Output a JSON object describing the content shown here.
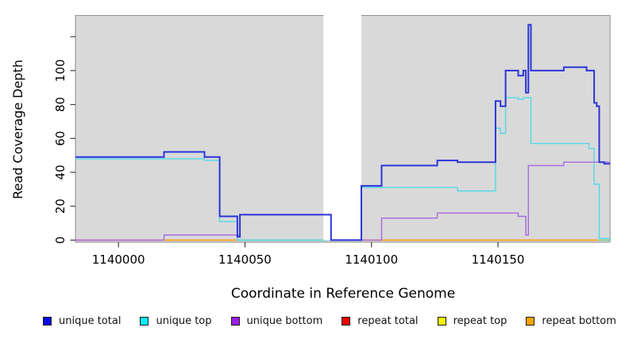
{
  "figure": {
    "x_label": "Coordinate in Reference Genome",
    "y_label": "Read Coverage Depth"
  },
  "legend": {
    "items": [
      {
        "label": "unique total",
        "color": "#0a0ae8"
      },
      {
        "label": "unique top",
        "color": "#00f0ff"
      },
      {
        "label": "unique bottom",
        "color": "#9b1fe8"
      },
      {
        "label": "repeat total",
        "color": "#ee0000"
      },
      {
        "label": "repeat top",
        "color": "#f5f500"
      },
      {
        "label": "repeat bottom",
        "color": "#ffa200"
      }
    ]
  },
  "chart_data": {
    "type": "step-line",
    "title": "",
    "xlabel": "Coordinate in Reference Genome",
    "ylabel": "Read Coverage Depth",
    "plot_background": "#d9d9d9",
    "grid": false,
    "legend_position": "bottom",
    "x_axis": {
      "min": 1139983,
      "max": 1140194.3,
      "ticks": [
        {
          "value": 1140000,
          "label": "1140000"
        },
        {
          "value": 1140050,
          "label": "1140050"
        },
        {
          "value": 1140100,
          "label": "1140100"
        },
        {
          "value": 1140150,
          "label": "1140150"
        }
      ]
    },
    "y_axis": {
      "min": -1.2,
      "max": 132.5,
      "ticks": [
        {
          "value": 0,
          "label": "0"
        },
        {
          "value": 20,
          "label": "20"
        },
        {
          "value": 40,
          "label": "40"
        },
        {
          "value": 60,
          "label": "60"
        },
        {
          "value": 80,
          "label": "80"
        },
        {
          "value": 100,
          "label": "100"
        },
        {
          "value": 120,
          "label": ""
        }
      ]
    },
    "masked_region": {
      "from": 1140081,
      "to": 1140096,
      "color": "#ffffff"
    },
    "series": [
      {
        "name": "unique total",
        "color": "#2b35d8",
        "width": 2,
        "points": [
          [
            1139983,
            49
          ],
          [
            1140018,
            52
          ],
          [
            1140034,
            49
          ],
          [
            1140040,
            14
          ],
          [
            1140047,
            2
          ],
          [
            1140048,
            15
          ],
          [
            1140084,
            0
          ],
          [
            1140096,
            32
          ],
          [
            1140104,
            44
          ],
          [
            1140126,
            47
          ],
          [
            1140134,
            46
          ],
          [
            1140149,
            82
          ],
          [
            1140151,
            79
          ],
          [
            1140153,
            100
          ],
          [
            1140158,
            97
          ],
          [
            1140160,
            100
          ],
          [
            1140161,
            87
          ],
          [
            1140162,
            127
          ],
          [
            1140163,
            100
          ],
          [
            1140176,
            102
          ],
          [
            1140185,
            100
          ],
          [
            1140188,
            81
          ],
          [
            1140189,
            79
          ],
          [
            1140190,
            46
          ],
          [
            1140192,
            45
          ]
        ]
      },
      {
        "name": "unique top",
        "color": "#52d9e8",
        "width": 1.4,
        "points": [
          [
            1139983,
            48
          ],
          [
            1140034,
            47
          ],
          [
            1140040,
            11
          ],
          [
            1140047,
            0
          ],
          [
            1140096,
            31
          ],
          [
            1140134,
            29
          ],
          [
            1140149,
            66
          ],
          [
            1140151,
            63
          ],
          [
            1140153,
            84
          ],
          [
            1140158,
            83
          ],
          [
            1140160,
            84
          ],
          [
            1140163,
            57
          ],
          [
            1140186,
            54
          ],
          [
            1140188,
            33
          ],
          [
            1140190,
            1
          ]
        ]
      },
      {
        "name": "unique bottom",
        "color": "#a76ae0",
        "width": 1.4,
        "points": [
          [
            1139983,
            0
          ],
          [
            1140018,
            3
          ],
          [
            1140048,
            15
          ],
          [
            1140084,
            0
          ],
          [
            1140104,
            13
          ],
          [
            1140126,
            16
          ],
          [
            1140158,
            14
          ],
          [
            1140161,
            3
          ],
          [
            1140162,
            44
          ],
          [
            1140176,
            46
          ]
        ]
      },
      {
        "name": "repeat total",
        "color": "#e0707f",
        "width": 1.5,
        "rendered_as": "baseline_segment",
        "points": [
          [
            1139983,
            0
          ],
          [
            1140194.3,
            0
          ]
        ]
      },
      {
        "name": "repeat top",
        "color": "#f5f500",
        "width": 1.5,
        "rendered_as": "baseline_segment",
        "points": [
          [
            1139983,
            0
          ],
          [
            1140194.3,
            0
          ]
        ]
      },
      {
        "name": "repeat bottom",
        "color": "#ff9b0a",
        "width": 1.5,
        "rendered_as": "baseline_segment",
        "points": [
          [
            1139983,
            0
          ],
          [
            1140194.3,
            0
          ]
        ]
      }
    ],
    "baseline_segments": [
      {
        "color": "#e0707f",
        "from": 1139983,
        "to": 1140018
      },
      {
        "color": "#ff9b0a",
        "from": 1140018,
        "to": 1140047
      },
      {
        "color": "#7ecb90",
        "from": 1140047,
        "to": 1140081
      },
      {
        "color": "#ff9b0a",
        "from": 1140096,
        "to": 1140189.5
      },
      {
        "color": "#7ecb90",
        "from": 1140189.5,
        "to": 1140194.3
      }
    ]
  }
}
